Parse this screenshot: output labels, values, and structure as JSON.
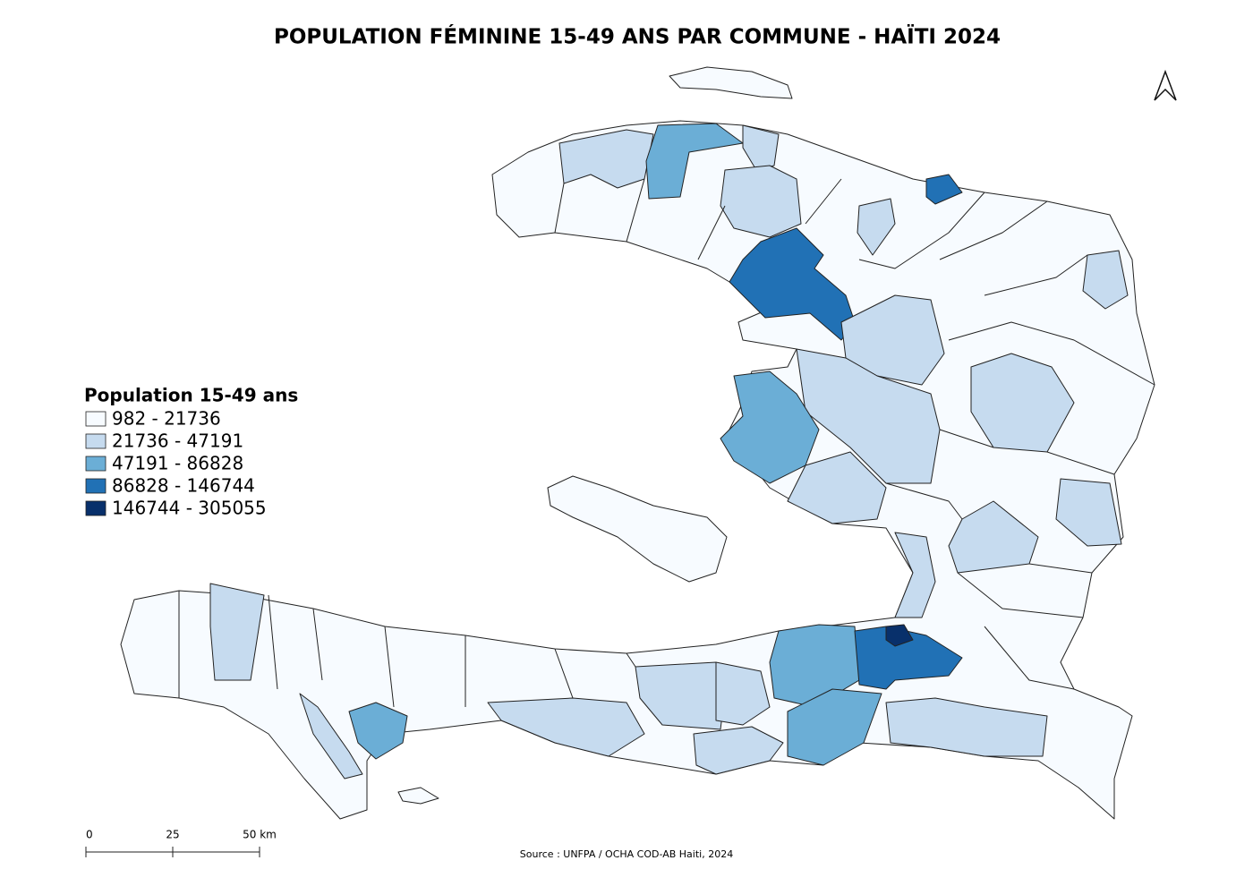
{
  "title": "POPULATION FÉMININE 15-49 ANS PAR COMMUNE - HAÏTI 2024",
  "legend": {
    "title": "Population 15-49 ans",
    "items": [
      {
        "label": "982 - 21736",
        "color": "#f7fbff"
      },
      {
        "label": "21736 - 47191",
        "color": "#c6dbef"
      },
      {
        "label": "47191 - 86828",
        "color": "#6baed6"
      },
      {
        "label": "86828 - 146744",
        "color": "#2171b5"
      },
      {
        "label": "146744 - 305055",
        "color": "#08306b"
      }
    ]
  },
  "scale_bar": {
    "labels": [
      "0",
      "25",
      "50 km"
    ]
  },
  "source": "Source : UNFPA / OCHA COD-AB Haiti, 2024"
}
